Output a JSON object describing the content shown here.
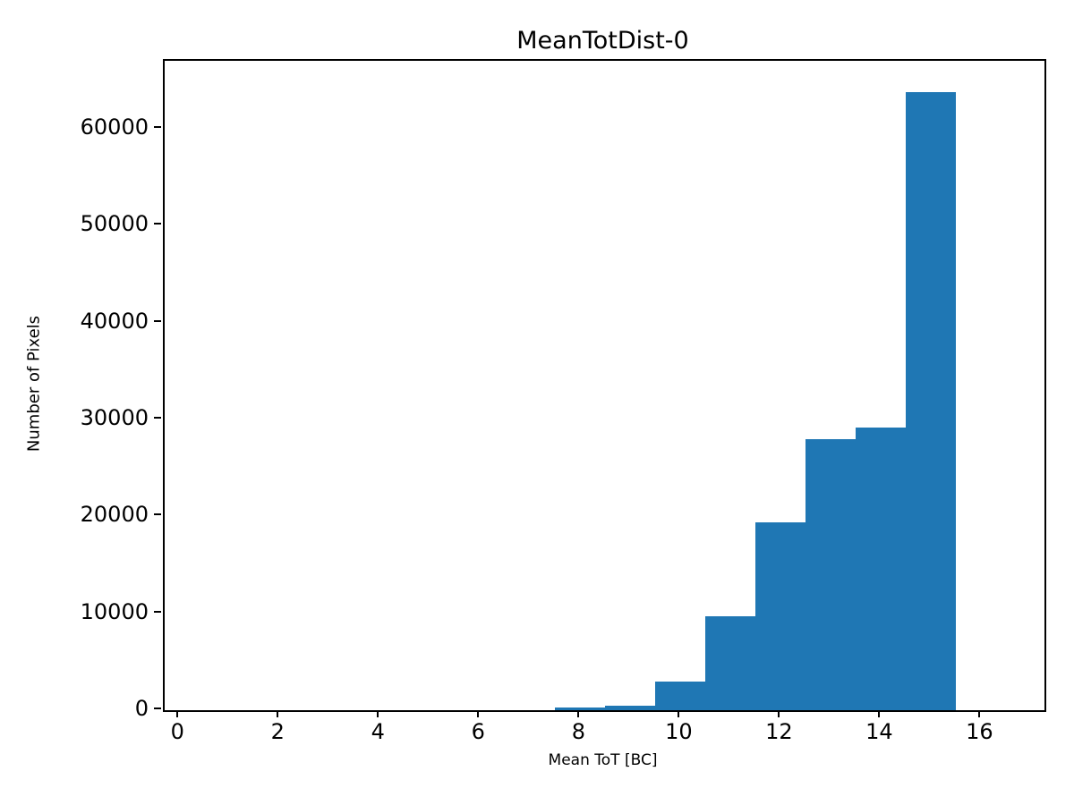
{
  "figure": {
    "background_color": "#ffffff",
    "axes_color": "#000000",
    "text_color": "#000000"
  },
  "chart_data": {
    "type": "bar",
    "subtype": "histogram",
    "title": "MeanTotDist-0",
    "xlabel": "Mean ToT [BC]",
    "ylabel": "Number of Pixels",
    "bar_color": "#1f77b4",
    "grid": false,
    "legend": null,
    "bin_width": 1,
    "bin_left_edges": [
      7.5,
      8.5,
      9.5,
      10.5,
      11.5,
      12.5,
      13.5,
      14.5
    ],
    "values": [
      250,
      500,
      2950,
      9700,
      19400,
      28000,
      29200,
      63800
    ],
    "x_ticks": [
      0,
      2,
      4,
      6,
      8,
      10,
      12,
      14,
      16
    ],
    "y_ticks": [
      0,
      10000,
      20000,
      30000,
      40000,
      50000,
      60000
    ],
    "xlim": [
      -0.29,
      17.26
    ],
    "ylim": [
      0,
      67000
    ]
  }
}
